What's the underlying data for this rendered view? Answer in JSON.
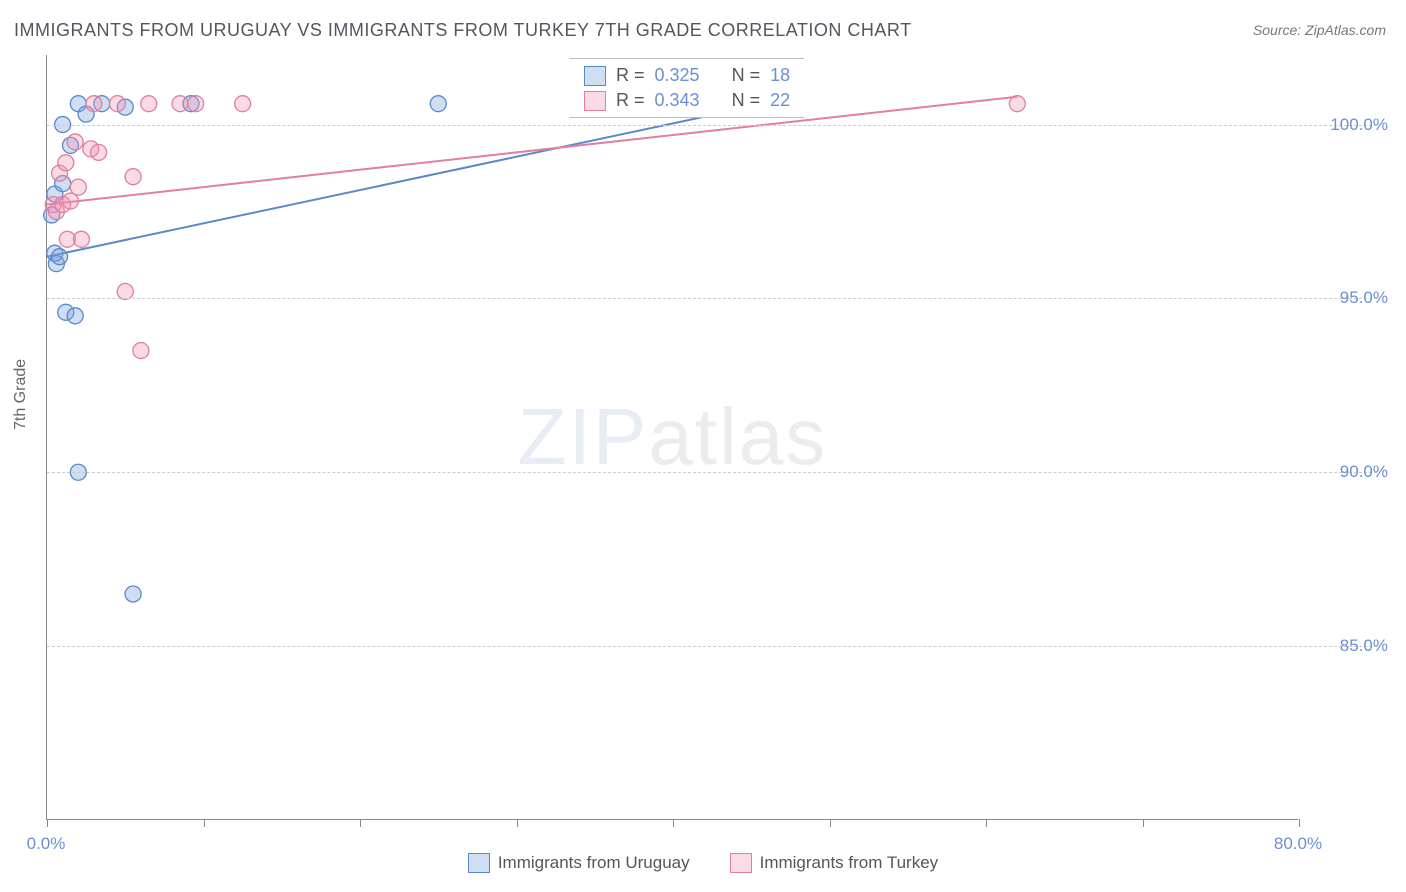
{
  "title": "IMMIGRANTS FROM URUGUAY VS IMMIGRANTS FROM TURKEY 7TH GRADE CORRELATION CHART",
  "source": "Source: ZipAtlas.com",
  "ylabel": "7th Grade",
  "watermark_bold": "ZIP",
  "watermark_thin": "atlas",
  "chart": {
    "type": "scatter",
    "xlim": [
      0,
      80
    ],
    "ylim": [
      80,
      102
    ],
    "x_ticks": [
      0,
      10,
      20,
      30,
      40,
      50,
      60,
      70,
      80
    ],
    "x_tick_labels": {
      "0": "0.0%",
      "80": "80.0%"
    },
    "y_ticks": [
      85,
      90,
      95,
      100
    ],
    "y_tick_labels": [
      "85.0%",
      "90.0%",
      "95.0%",
      "100.0%"
    ],
    "grid_color": "#cccccc",
    "axis_color": "#888888",
    "background_color": "#ffffff",
    "series": [
      {
        "name": "Immigrants from Uruguay",
        "color_fill": "rgba(120,160,220,0.35)",
        "color_stroke": "#5a88c8",
        "marker_radius": 8,
        "R": "0.325",
        "N": "18",
        "trend": {
          "x1": 0,
          "y1": 96.2,
          "x2": 48,
          "y2": 100.8
        },
        "points": [
          {
            "x": 0.5,
            "y": 96.3
          },
          {
            "x": 0.6,
            "y": 96.0
          },
          {
            "x": 0.8,
            "y": 96.2
          },
          {
            "x": 0.5,
            "y": 98.0
          },
          {
            "x": 1.0,
            "y": 98.3
          },
          {
            "x": 1.5,
            "y": 99.4
          },
          {
            "x": 1.2,
            "y": 94.6
          },
          {
            "x": 1.8,
            "y": 94.5
          },
          {
            "x": 2.0,
            "y": 100.6
          },
          {
            "x": 2.5,
            "y": 100.3
          },
          {
            "x": 1.0,
            "y": 100.0
          },
          {
            "x": 3.5,
            "y": 100.6
          },
          {
            "x": 5.0,
            "y": 100.5
          },
          {
            "x": 9.2,
            "y": 100.6
          },
          {
            "x": 25.0,
            "y": 100.6
          },
          {
            "x": 2.0,
            "y": 90.0
          },
          {
            "x": 5.5,
            "y": 86.5
          },
          {
            "x": 0.3,
            "y": 97.4
          }
        ]
      },
      {
        "name": "Immigrants from Turkey",
        "color_fill": "rgba(240,150,180,0.35)",
        "color_stroke": "#e07fa0",
        "marker_radius": 8,
        "R": "0.343",
        "N": "22",
        "trend": {
          "x1": 0,
          "y1": 97.7,
          "x2": 62,
          "y2": 100.8
        },
        "points": [
          {
            "x": 0.4,
            "y": 97.7
          },
          {
            "x": 0.6,
            "y": 97.5
          },
          {
            "x": 1.0,
            "y": 97.7
          },
          {
            "x": 1.5,
            "y": 97.8
          },
          {
            "x": 2.0,
            "y": 98.2
          },
          {
            "x": 1.3,
            "y": 96.7
          },
          {
            "x": 2.2,
            "y": 96.7
          },
          {
            "x": 2.8,
            "y": 99.3
          },
          {
            "x": 3.3,
            "y": 99.2
          },
          {
            "x": 1.8,
            "y": 99.5
          },
          {
            "x": 3.0,
            "y": 100.6
          },
          {
            "x": 4.5,
            "y": 100.6
          },
          {
            "x": 5.5,
            "y": 98.5
          },
          {
            "x": 5.0,
            "y": 95.2
          },
          {
            "x": 6.5,
            "y": 100.6
          },
          {
            "x": 8.5,
            "y": 100.6
          },
          {
            "x": 9.5,
            "y": 100.6
          },
          {
            "x": 12.5,
            "y": 100.6
          },
          {
            "x": 6.0,
            "y": 93.5
          },
          {
            "x": 0.8,
            "y": 98.6
          },
          {
            "x": 1.2,
            "y": 98.9
          },
          {
            "x": 62.0,
            "y": 100.6
          }
        ]
      }
    ]
  },
  "legend_bottom": [
    {
      "label": "Immigrants from Uruguay",
      "fill": "rgba(120,160,220,0.35)",
      "stroke": "#5a88c8"
    },
    {
      "label": "Immigrants from Turkey",
      "fill": "rgba(240,150,180,0.35)",
      "stroke": "#e07fa0"
    }
  ],
  "rbox": {
    "rows": [
      {
        "fill": "rgba(120,160,220,0.35)",
        "stroke": "#5a88c8",
        "R_label": "R =",
        "R": "0.325",
        "N_label": "N =",
        "N": "18"
      },
      {
        "fill": "rgba(240,150,180,0.35)",
        "stroke": "#e07fa0",
        "R_label": "R =",
        "R": "0.343",
        "N_label": "N =",
        "N": "22"
      }
    ]
  }
}
